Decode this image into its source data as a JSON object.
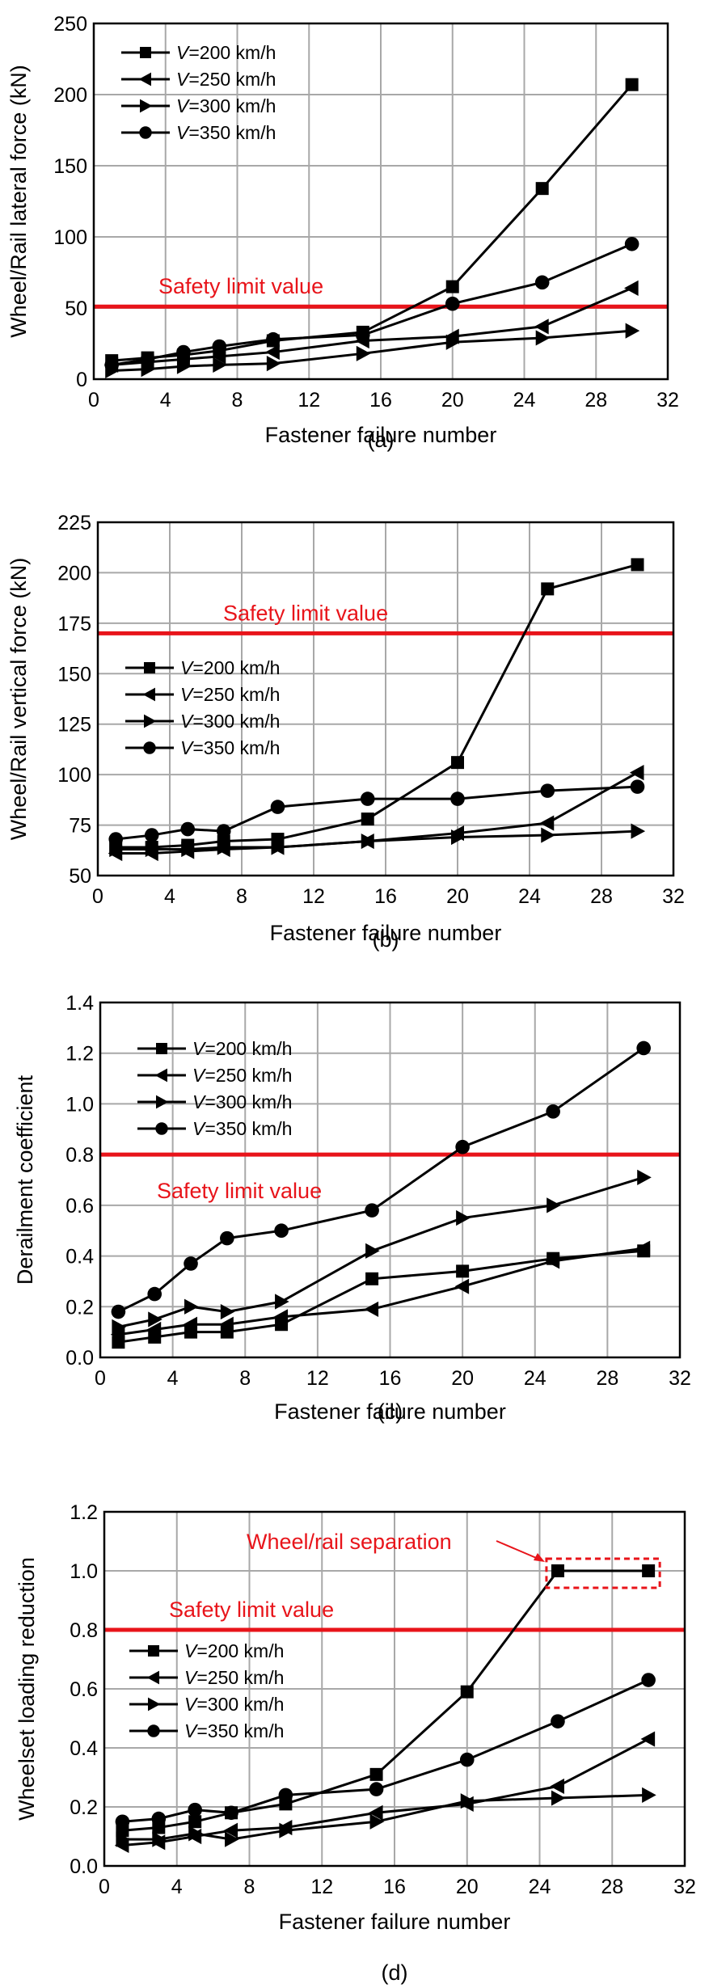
{
  "colors": {
    "limit": "#e8141a",
    "series": "#000000",
    "grid": "#a8a8a8"
  },
  "chart_data": [
    {
      "type": "line",
      "panel": "(a)",
      "title": "",
      "xlabel": "Fastener failure number",
      "ylabel": "Wheel/Rail lateral force (kN)",
      "xlim": [
        0,
        32
      ],
      "ylim": [
        0,
        250
      ],
      "xticks": [
        "0",
        "4",
        "8",
        "12",
        "16",
        "20",
        "24",
        "28",
        "32"
      ],
      "yticks": [
        "0",
        "50",
        "100",
        "150",
        "200",
        "250"
      ],
      "grid": true,
      "legend_position": "top-left",
      "x": [
        1,
        3,
        5,
        7,
        10,
        15,
        20,
        25,
        30
      ],
      "series": [
        {
          "name": "V=200 km/h",
          "speed": "200 km/h",
          "marker": "square",
          "values": [
            13,
            15,
            17,
            20,
            27,
            33,
            65,
            134,
            207
          ]
        },
        {
          "name": "V=250 km/h",
          "speed": "250 km/h",
          "marker": "triangle-left",
          "values": [
            10,
            12,
            14,
            16,
            19,
            27,
            30,
            37,
            64
          ]
        },
        {
          "name": "V=300 km/h",
          "speed": "300 km/h",
          "marker": "triangle-right",
          "values": [
            6,
            7,
            9,
            10,
            11,
            18,
            26,
            29,
            34
          ]
        },
        {
          "name": "V=350 km/h",
          "speed": "350 km/h",
          "marker": "circle",
          "values": [
            10,
            14,
            19,
            23,
            28,
            31,
            53,
            68,
            95
          ]
        }
      ],
      "safety_limit": {
        "value": 51,
        "label": "Safety limit value",
        "label_position": "above-line"
      }
    },
    {
      "type": "line",
      "panel": "(b)",
      "title": "",
      "xlabel": "Fastener failure number",
      "ylabel": "Wheel/Rail vertical force (kN)",
      "xlim": [
        0,
        32
      ],
      "ylim": [
        50,
        225
      ],
      "xticks": [
        "0",
        "4",
        "8",
        "12",
        "16",
        "20",
        "24",
        "28",
        "32"
      ],
      "yticks": [
        "50",
        "75",
        "100",
        "125",
        "150",
        "175",
        "200",
        "225"
      ],
      "grid": true,
      "legend_position": "center-left",
      "x": [
        1,
        3,
        5,
        7,
        10,
        15,
        20,
        25,
        30
      ],
      "series": [
        {
          "name": "V=200 km/h",
          "speed": "200 km/h",
          "marker": "square",
          "values": [
            64,
            64,
            65,
            67,
            68,
            78,
            106,
            192,
            204
          ]
        },
        {
          "name": "V=250 km/h",
          "speed": "250 km/h",
          "marker": "triangle-left",
          "values": [
            61,
            61,
            62,
            63,
            64,
            67,
            71,
            76,
            101
          ]
        },
        {
          "name": "V=300 km/h",
          "speed": "300 km/h",
          "marker": "triangle-right",
          "values": [
            63,
            63,
            63,
            64,
            64,
            67,
            69,
            70,
            72
          ]
        },
        {
          "name": "V=350 km/h",
          "speed": "350 km/h",
          "marker": "circle",
          "values": [
            68,
            70,
            73,
            72,
            84,
            88,
            88,
            92,
            94
          ]
        }
      ],
      "safety_limit": {
        "value": 170,
        "label": "Safety limit value",
        "label_position": "above-line"
      }
    },
    {
      "type": "line",
      "panel": "(c)",
      "title": "",
      "xlabel": "Fastener failure number",
      "ylabel": "Derailment coefficient",
      "xlim": [
        0,
        32
      ],
      "ylim": [
        0,
        1.4
      ],
      "xticks": [
        "0",
        "4",
        "8",
        "12",
        "16",
        "20",
        "24",
        "28",
        "32"
      ],
      "yticks": [
        "0.0",
        "0.2",
        "0.4",
        "0.6",
        "0.8",
        "1.0",
        "1.2",
        "1.4"
      ],
      "grid": true,
      "legend_position": "top-left",
      "x": [
        1,
        3,
        5,
        7,
        10,
        15,
        20,
        25,
        30
      ],
      "series": [
        {
          "name": "V=200 km/h",
          "speed": "200 km/h",
          "marker": "square",
          "values": [
            0.06,
            0.08,
            0.1,
            0.1,
            0.13,
            0.31,
            0.34,
            0.39,
            0.42
          ]
        },
        {
          "name": "V=250 km/h",
          "speed": "250 km/h",
          "marker": "triangle-left",
          "values": [
            0.09,
            0.11,
            0.13,
            0.13,
            0.16,
            0.19,
            0.28,
            0.38,
            0.43
          ]
        },
        {
          "name": "V=300 km/h",
          "speed": "300 km/h",
          "marker": "triangle-right",
          "values": [
            0.12,
            0.15,
            0.2,
            0.18,
            0.22,
            0.42,
            0.55,
            0.6,
            0.71
          ]
        },
        {
          "name": "V=350 km/h",
          "speed": "350 km/h",
          "marker": "circle",
          "values": [
            0.18,
            0.25,
            0.37,
            0.47,
            0.5,
            0.58,
            0.83,
            0.97,
            1.22
          ]
        }
      ],
      "safety_limit": {
        "value": 0.8,
        "label": "Safety limit value",
        "label_position": "below-line"
      }
    },
    {
      "type": "line",
      "panel": "(d)",
      "title": "",
      "xlabel": "Fastener failure number",
      "ylabel": "Wheelset loading reduction",
      "xlim": [
        0,
        32
      ],
      "ylim": [
        0,
        1.2
      ],
      "xticks": [
        "0",
        "4",
        "8",
        "12",
        "16",
        "20",
        "24",
        "28",
        "32"
      ],
      "yticks": [
        "0.0",
        "0.2",
        "0.4",
        "0.6",
        "0.8",
        "1.0",
        "1.2"
      ],
      "grid": true,
      "legend_position": "center-left",
      "x": [
        1,
        3,
        5,
        7,
        10,
        15,
        20,
        25,
        30
      ],
      "series": [
        {
          "name": "V=200 km/h",
          "speed": "200 km/h",
          "marker": "square",
          "values": [
            0.12,
            0.13,
            0.15,
            0.18,
            0.21,
            0.31,
            0.59,
            1.0,
            1.0
          ]
        },
        {
          "name": "V=250 km/h",
          "speed": "250 km/h",
          "marker": "triangle-left",
          "values": [
            0.07,
            0.08,
            0.1,
            0.12,
            0.13,
            0.18,
            0.21,
            0.27,
            0.43
          ]
        },
        {
          "name": "V=300 km/h",
          "speed": "300 km/h",
          "marker": "triangle-right",
          "values": [
            0.09,
            0.09,
            0.11,
            0.09,
            0.12,
            0.15,
            0.22,
            0.23,
            0.24
          ]
        },
        {
          "name": "V=350 km/h",
          "speed": "350 km/h",
          "marker": "circle",
          "values": [
            0.15,
            0.16,
            0.19,
            0.18,
            0.24,
            0.26,
            0.36,
            0.49,
            0.63
          ]
        }
      ],
      "safety_limit": {
        "value": 0.8,
        "label": "Safety limit value",
        "label_position": "above-line"
      },
      "annotation": {
        "text": "Wheel/rail separation",
        "target_x": [
          25,
          30
        ],
        "target_y": 1.0,
        "style": "dashed-box-with-arrow"
      }
    }
  ]
}
